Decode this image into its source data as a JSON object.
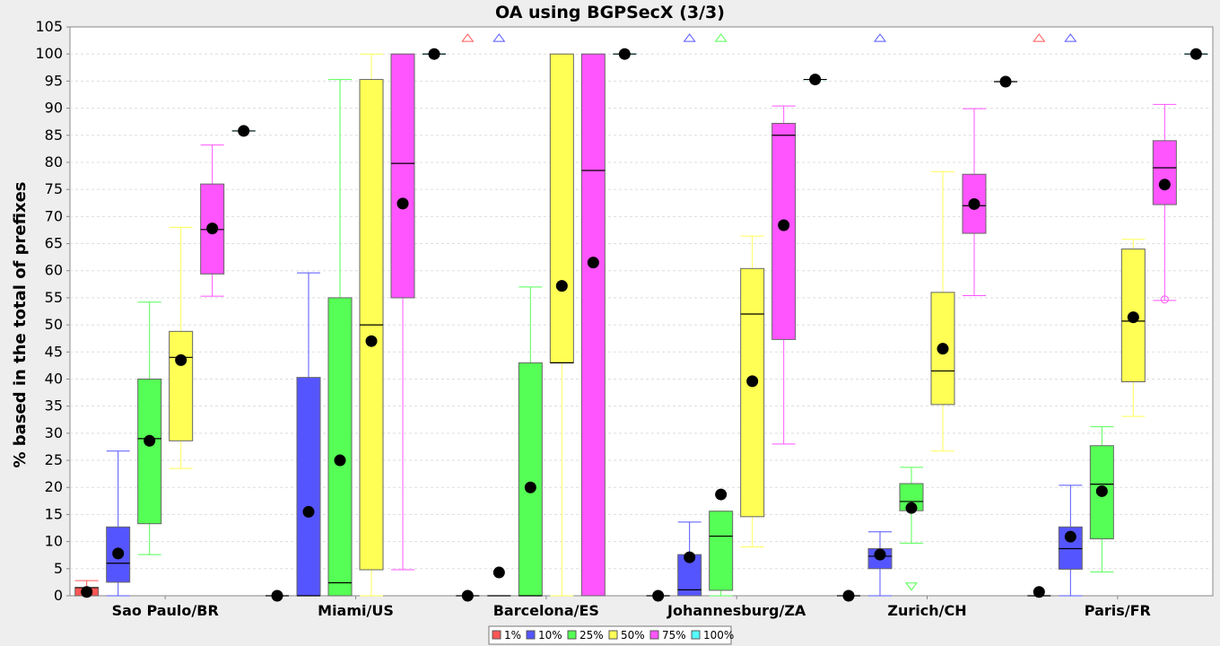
{
  "chart_data": {
    "type": "boxplot",
    "title": "OA using BGPSecX  (3/3)",
    "xlabel": "",
    "ylabel": "% based in the total of prefixes",
    "ylim": [
      0,
      105
    ],
    "yticks": [
      0,
      5,
      10,
      15,
      20,
      25,
      30,
      35,
      40,
      45,
      50,
      55,
      60,
      65,
      70,
      75,
      80,
      85,
      90,
      95,
      100,
      105
    ],
    "grid": true,
    "legend_position": "bottom",
    "categories": [
      "Sao Paulo/BR",
      "Miami/US",
      "Barcelona/ES",
      "Johannesburg/ZA",
      "Zurich/CH",
      "Paris/FR"
    ],
    "series": [
      {
        "name": "1%",
        "color": "#ff5555",
        "boxes": [
          {
            "min": 0,
            "q1": 0,
            "median": 1.5,
            "q3": 1.5,
            "max": 2.8,
            "mean": 0.7
          },
          {
            "min": 0,
            "q1": 0,
            "median": 0,
            "q3": 0,
            "max": 0,
            "mean": 0
          },
          {
            "min": 0,
            "q1": 0,
            "median": 0,
            "q3": 0,
            "max": 0,
            "mean": 0,
            "outliers_above": [
              103
            ]
          },
          {
            "min": 0,
            "q1": 0,
            "median": 0,
            "q3": 0,
            "max": 0,
            "mean": 0
          },
          {
            "min": 0,
            "q1": 0,
            "median": 0,
            "q3": 0,
            "max": 0,
            "mean": 0
          },
          {
            "min": 0,
            "q1": 0,
            "median": 0,
            "q3": 0,
            "max": 0,
            "mean": 0.7,
            "outliers_above": [
              103
            ]
          }
        ]
      },
      {
        "name": "10%",
        "color": "#5555ff",
        "boxes": [
          {
            "min": 0,
            "q1": 2.5,
            "median": 6,
            "q3": 12.7,
            "max": 26.7,
            "mean": 7.8
          },
          {
            "min": 0,
            "q1": 0,
            "median": 0,
            "q3": 40.3,
            "max": 59.6,
            "mean": 15.5
          },
          {
            "min": 0,
            "q1": 0,
            "median": 0,
            "q3": 0,
            "max": 0,
            "mean": 4.3,
            "outliers_above": [
              103
            ]
          },
          {
            "min": 0,
            "q1": 0,
            "median": 1.1,
            "q3": 7.6,
            "max": 13.6,
            "mean": 7.1,
            "outliers_above": [
              103
            ]
          },
          {
            "min": 0,
            "q1": 5,
            "median": 7.3,
            "q3": 8.7,
            "max": 11.8,
            "mean": 7.6,
            "outliers_above": [
              103
            ]
          },
          {
            "min": 0,
            "q1": 4.9,
            "median": 8.7,
            "q3": 12.7,
            "max": 20.4,
            "mean": 10.9,
            "outliers_above": [
              103
            ]
          }
        ]
      },
      {
        "name": "25%",
        "color": "#55ff55",
        "boxes": [
          {
            "min": 7.6,
            "q1": 13.3,
            "median": 29,
            "q3": 40,
            "max": 54.2,
            "mean": 28.6
          },
          {
            "min": 0,
            "q1": 0,
            "median": 2.4,
            "q3": 55,
            "max": 95.3,
            "mean": 25
          },
          {
            "min": 0,
            "q1": 0,
            "median": 0,
            "q3": 43,
            "max": 57,
            "mean": 20
          },
          {
            "min": 0,
            "q1": 1,
            "median": 11,
            "q3": 15.6,
            "max": 15.6,
            "mean": 18.7,
            "outliers_above": [
              103
            ]
          },
          {
            "min": 9.7,
            "q1": 15.7,
            "median": 17.4,
            "q3": 20.7,
            "max": 23.7,
            "mean": 16.2,
            "outliers_below": [
              1.7
            ]
          },
          {
            "min": 4.4,
            "q1": 10.5,
            "median": 20.6,
            "q3": 27.7,
            "max": 31.2,
            "mean": 19.3
          }
        ]
      },
      {
        "name": "50%",
        "color": "#ffff55",
        "boxes": [
          {
            "min": 23.5,
            "q1": 28.6,
            "median": 44,
            "q3": 48.8,
            "max": 68,
            "mean": 43.5
          },
          {
            "min": 0,
            "q1": 4.8,
            "median": 50,
            "q3": 95.3,
            "max": 100,
            "mean": 47
          },
          {
            "min": 0,
            "q1": 43,
            "median": 43,
            "q3": 100,
            "max": 100,
            "mean": 57.2
          },
          {
            "min": 9,
            "q1": 14.6,
            "median": 52,
            "q3": 60.4,
            "max": 66.4,
            "mean": 39.6
          },
          {
            "min": 26.7,
            "q1": 35.3,
            "median": 41.5,
            "q3": 56,
            "max": 78.3,
            "mean": 45.6
          },
          {
            "min": 33.1,
            "q1": 39.5,
            "median": 50.7,
            "q3": 64,
            "max": 65.8,
            "mean": 51.4
          }
        ]
      },
      {
        "name": "75%",
        "color": "#ff55ff",
        "boxes": [
          {
            "min": 55.3,
            "q1": 59.4,
            "median": 67.6,
            "q3": 76,
            "max": 83.2,
            "mean": 67.8
          },
          {
            "min": 4.8,
            "q1": 55,
            "median": 79.8,
            "q3": 100,
            "max": 100,
            "mean": 72.4
          },
          {
            "min": 0,
            "q1": 0,
            "median": 78.5,
            "q3": 100,
            "max": 100,
            "mean": 61.5
          },
          {
            "min": 28,
            "q1": 47.3,
            "median": 85,
            "q3": 87.2,
            "max": 90.4,
            "mean": 68.4
          },
          {
            "min": 55.4,
            "q1": 66.9,
            "median": 72,
            "q3": 77.8,
            "max": 89.9,
            "mean": 72.3
          },
          {
            "min": 54.5,
            "q1": 72.2,
            "median": 79,
            "q3": 84,
            "max": 90.7,
            "mean": 75.9,
            "outliers": [
              54.7
            ]
          }
        ]
      },
      {
        "name": "100%",
        "color": "#55ffff",
        "boxes": [
          {
            "min": 85.8,
            "q1": 85.8,
            "median": 85.8,
            "q3": 85.8,
            "max": 85.8,
            "mean": 85.8
          },
          {
            "min": 100,
            "q1": 100,
            "median": 100,
            "q3": 100,
            "max": 100,
            "mean": 100
          },
          {
            "min": 100,
            "q1": 100,
            "median": 100,
            "q3": 100,
            "max": 100,
            "mean": 100
          },
          {
            "min": 95.3,
            "q1": 95.3,
            "median": 95.3,
            "q3": 95.3,
            "max": 95.3,
            "mean": 95.3
          },
          {
            "min": 94.9,
            "q1": 94.9,
            "median": 94.9,
            "q3": 94.9,
            "max": 94.9,
            "mean": 94.9
          },
          {
            "min": 100,
            "q1": 100,
            "median": 100,
            "q3": 100,
            "max": 100,
            "mean": 100
          }
        ]
      }
    ]
  }
}
